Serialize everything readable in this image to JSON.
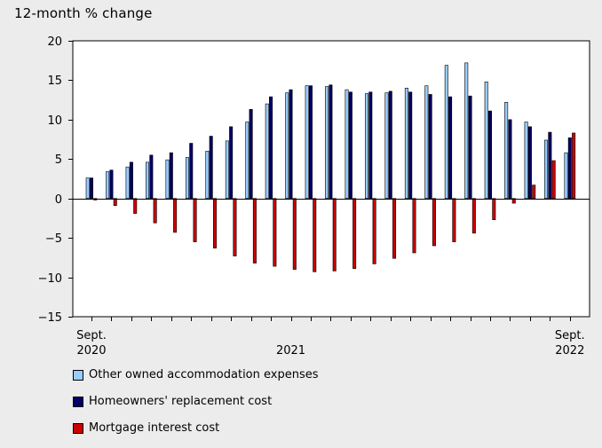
{
  "chart_data": {
    "type": "bar",
    "title": "",
    "unit_label": "12-month % change",
    "xlabel": "",
    "ylabel": "",
    "ylim": [
      -15,
      20
    ],
    "y_ticks": [
      20,
      15,
      10,
      5,
      0,
      -5,
      -10,
      -15
    ],
    "grid": false,
    "legend_position": "bottom-left",
    "categories": [
      "2020-09",
      "2020-10",
      "2020-11",
      "2020-12",
      "2021-01",
      "2021-02",
      "2021-03",
      "2021-04",
      "2021-05",
      "2021-06",
      "2021-07",
      "2021-08",
      "2021-09",
      "2021-10",
      "2021-11",
      "2021-12",
      "2022-01",
      "2022-02",
      "2022-03",
      "2022-04",
      "2022-05",
      "2022-06",
      "2022-07",
      "2022-08",
      "2022-09"
    ],
    "x_tick_labels": [
      {
        "index": 0,
        "line1": "Sept.",
        "line2": "2020"
      },
      {
        "index": 10,
        "line1": "",
        "line2": "2021"
      },
      {
        "index": 24,
        "line1": "Sept.",
        "line2": "2022"
      }
    ],
    "series": [
      {
        "name": "Other owned accommodation expenses",
        "color": "#99ccff",
        "values": [
          2.6,
          3.4,
          4.0,
          4.6,
          4.9,
          5.2,
          6.0,
          7.3,
          9.7,
          12.0,
          13.4,
          14.3,
          14.2,
          13.8,
          13.3,
          13.4,
          14.0,
          14.3,
          16.9,
          17.2,
          14.8,
          12.2,
          9.7,
          7.4,
          5.8
        ]
      },
      {
        "name": "Homeowners' replacement cost",
        "color": "#000066",
        "values": [
          2.6,
          3.6,
          4.6,
          5.5,
          5.8,
          7.0,
          7.9,
          9.1,
          11.3,
          12.9,
          13.8,
          14.3,
          14.4,
          13.5,
          13.5,
          13.6,
          13.5,
          13.2,
          12.9,
          13.0,
          11.1,
          10.0,
          9.1,
          8.4,
          7.7
        ]
      },
      {
        "name": "Mortgage interest cost",
        "color": "#cc0000",
        "values": [
          -0.2,
          -0.9,
          -1.9,
          -3.1,
          -4.3,
          -5.5,
          -6.3,
          -7.3,
          -8.2,
          -8.6,
          -9.0,
          -9.3,
          -9.2,
          -8.9,
          -8.3,
          -7.6,
          -6.9,
          -6.0,
          -5.5,
          -4.4,
          -2.7,
          -0.6,
          1.7,
          4.8,
          8.3
        ]
      }
    ]
  }
}
